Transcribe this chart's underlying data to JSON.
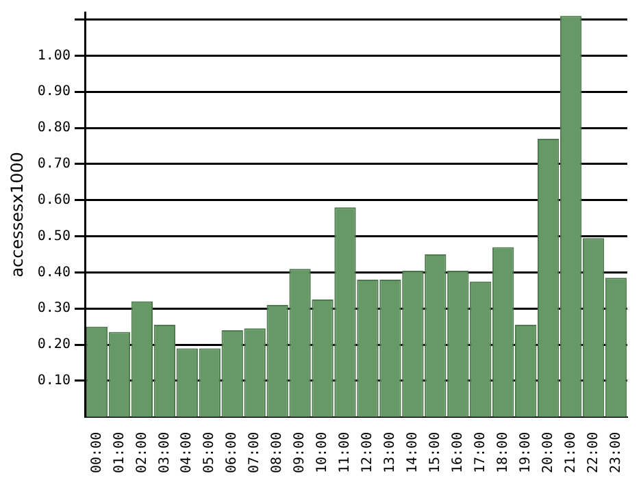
{
  "chart_data": {
    "type": "bar",
    "ylabel": "accessesx1000",
    "categories": [
      "00:00",
      "01:00",
      "02:00",
      "03:00",
      "04:00",
      "05:00",
      "06:00",
      "07:00",
      "08:00",
      "09:00",
      "10:00",
      "11:00",
      "12:00",
      "13:00",
      "14:00",
      "15:00",
      "16:00",
      "17:00",
      "18:00",
      "19:00",
      "20:00",
      "21:00",
      "22:00",
      "23:00"
    ],
    "values": [
      0.25,
      0.235,
      0.32,
      0.255,
      0.19,
      0.19,
      0.24,
      0.245,
      0.31,
      0.41,
      0.325,
      0.58,
      0.38,
      0.38,
      0.405,
      0.45,
      0.405,
      0.375,
      0.47,
      0.255,
      0.77,
      1.11,
      0.495,
      0.385
    ],
    "color": "#669966",
    "ylim": [
      0,
      1.12
    ],
    "yticks": [
      {
        "value": 0.1,
        "label": "0.10"
      },
      {
        "value": 0.2,
        "label": "0.20"
      },
      {
        "value": 0.3,
        "label": "0.30"
      },
      {
        "value": 0.4,
        "label": "0.40"
      },
      {
        "value": 0.5,
        "label": "0.50"
      },
      {
        "value": 0.6,
        "label": "0.60"
      },
      {
        "value": 0.7,
        "label": "0.70"
      },
      {
        "value": 0.8,
        "label": "0.80"
      },
      {
        "value": 0.9,
        "label": "0.90"
      },
      {
        "value": 1.0,
        "label": "1.00"
      },
      {
        "value": 1.1,
        "label": null
      }
    ],
    "grid": "y",
    "legend": false
  }
}
